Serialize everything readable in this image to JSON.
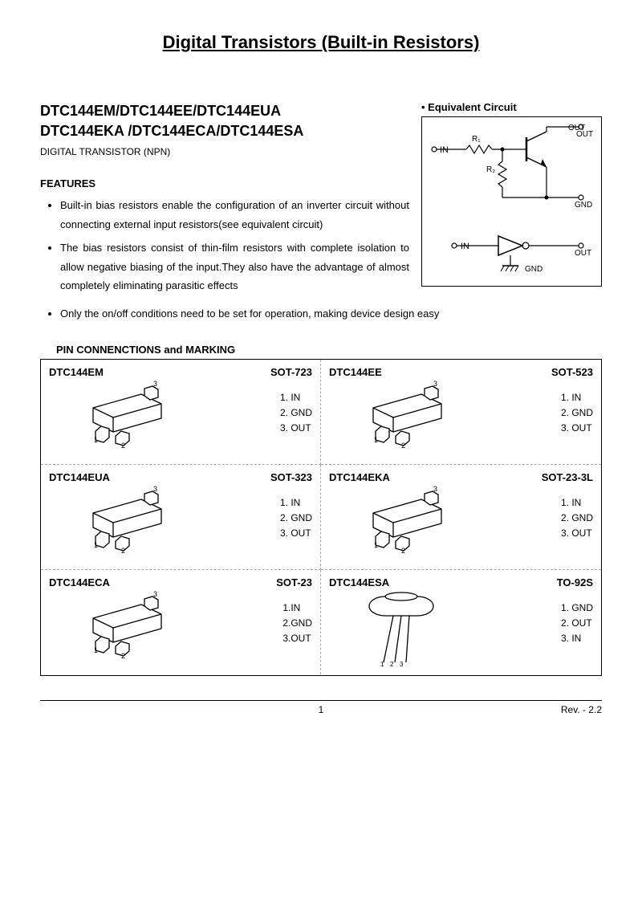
{
  "title": "Digital Transistors (Built-in Resistors)",
  "part_line1": "DTC144EM/DTC144EE/DTC144EUA",
  "part_line2": "DTC144EKA /DTC144ECA/DTC144ESA",
  "subtitle": "DIGITAL TRANSISTOR (NPN)",
  "features_heading": "FEATURES",
  "feature1": "Built-in bias resistors enable the configuration of an inverter circuit without connecting external input resistors(see equivalent circuit)",
  "feature2": "The bias resistors consist of thin-film resistors with complete isolation to allow negative biasing of the input.They also have the advantage of almost completely eliminating parasitic effects",
  "feature3": "Only the on/off conditions need to be set for operation, making device design easy",
  "circuit_label": "• Equivalent Circuit",
  "circuit": {
    "in": "IN",
    "out": "OUT",
    "gnd": "GND",
    "r1": "R₁",
    "r2": "R₂"
  },
  "pin_heading": "PIN CONNENCTIONS and MARKING",
  "packages": [
    {
      "part": "DTC144EM",
      "pkg": "SOT-723",
      "pins": [
        "1. IN",
        "2. GND",
        "3. OUT"
      ],
      "type": "sot"
    },
    {
      "part": "DTC144EE",
      "pkg": "SOT-523",
      "pins": [
        "1. IN",
        "2. GND",
        "3. OUT"
      ],
      "type": "sot"
    },
    {
      "part": "DTC144EUA",
      "pkg": "SOT-323",
      "pins": [
        "1. IN",
        "2. GND",
        "3. OUT"
      ],
      "type": "sot"
    },
    {
      "part": "DTC144EKA",
      "pkg": "SOT-23-3L",
      "pins": [
        "1. IN",
        "2. GND",
        "3. OUT"
      ],
      "type": "sot"
    },
    {
      "part": "DTC144ECA",
      "pkg": "SOT-23",
      "pins": [
        "1.IN",
        "2.GND",
        "3.OUT"
      ],
      "type": "sot"
    },
    {
      "part": "DTC144ESA",
      "pkg": "TO-92S",
      "pins": [
        "1. GND",
        "2. OUT",
        "3. IN"
      ],
      "type": "to92"
    }
  ],
  "footer": {
    "page": "1",
    "rev": "Rev. - 2.2"
  }
}
